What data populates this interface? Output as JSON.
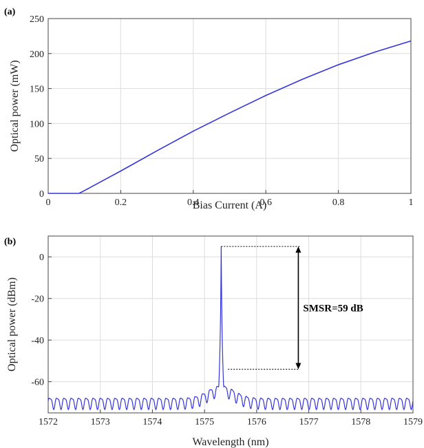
{
  "chart_data": [
    {
      "panel": "(a)",
      "type": "line",
      "xlabel": "Bias Current (A)",
      "ylabel": "Optical power (mW)",
      "xlim": [
        0,
        1
      ],
      "ylim": [
        0,
        250
      ],
      "xticks": [
        0,
        0.2,
        0.4,
        0.6,
        0.8,
        1
      ],
      "xtick_labels": [
        "0",
        "0.2",
        "0.4",
        "0.6",
        "0.8",
        "1"
      ],
      "yticks": [
        0,
        50,
        100,
        150,
        200,
        250
      ],
      "ytick_labels": [
        "0",
        "50",
        "100",
        "150",
        "200",
        "250"
      ],
      "grid": true,
      "color": "#3333dd",
      "series": [
        {
          "x": [
            0,
            0.05,
            0.085,
            0.1,
            0.15,
            0.2,
            0.3,
            0.4,
            0.5,
            0.6,
            0.7,
            0.8,
            0.9,
            1.0
          ],
          "y": [
            0,
            0,
            0,
            4,
            18,
            32,
            61,
            89,
            115,
            140,
            163,
            184,
            202,
            218
          ]
        }
      ]
    },
    {
      "panel": "(b)",
      "type": "line",
      "xlabel": "Wavelength (nm)",
      "ylabel": "Optical power (dBm)",
      "xlim": [
        1572,
        1579
      ],
      "ylim": [
        -75,
        10
      ],
      "xticks": [
        1572,
        1573,
        1574,
        1575,
        1576,
        1577,
        1578,
        1579
      ],
      "xtick_labels": [
        "1572",
        "1573",
        "1574",
        "1575",
        "1576",
        "1577",
        "1578",
        "1579"
      ],
      "yticks": [
        0,
        -20,
        -40,
        -60
      ],
      "ytick_labels": [
        "0",
        "-20",
        "-40",
        "-60"
      ],
      "grid": true,
      "color": "#3333dd",
      "peak": {
        "x": 1575.32,
        "y": 5
      },
      "baseline": {
        "floor_dbm": -70,
        "ripple_period_nm": 0.14
      },
      "annotation": {
        "text": "SMSR=59 dB",
        "top_dbm": 5,
        "bottom_dbm": -54,
        "x_start_nm": 1575.32,
        "x_arrow_nm": 1576.8
      }
    }
  ]
}
